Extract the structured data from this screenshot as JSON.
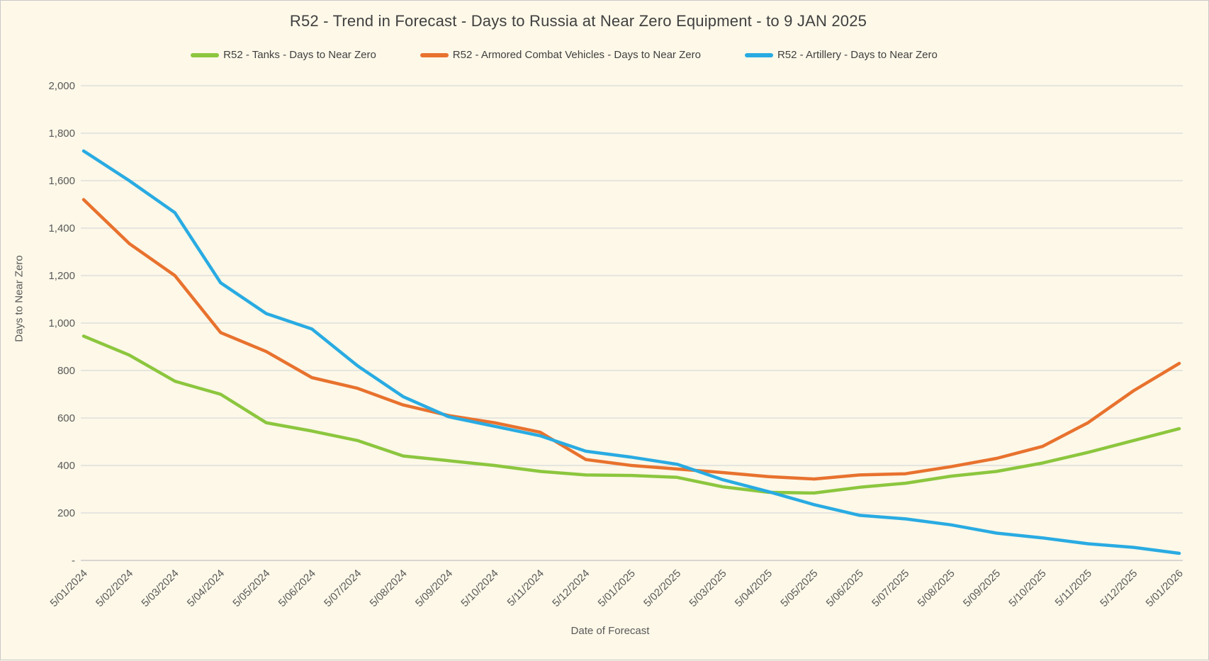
{
  "page": {
    "background_color": "#FDF8E8",
    "border_color": "#C9C9C9",
    "gridline_color": "#D9D9D9",
    "axis_line_color": "#C2C2C2",
    "axis_text_color": "#595959",
    "title_text_color": "#404040"
  },
  "chart_data": {
    "type": "line",
    "title": "R52 - Trend in Forecast - Days to Russia at Near Zero Equipment - to 9 JAN 2025",
    "xlabel": "Date of Forecast",
    "ylabel": "Days to Near Zero",
    "ylim": [
      0,
      2000
    ],
    "y_tick_interval": 200,
    "y_tick_labels": [
      "-",
      "200",
      "400",
      "600",
      "800",
      "1,000",
      "1,200",
      "1,400",
      "1,600",
      "1,800",
      "2,000"
    ],
    "grid": true,
    "legend_position": "top",
    "x_tick_rotation_deg": 45,
    "categories": [
      "5/01/2024",
      "5/02/2024",
      "5/03/2024",
      "5/04/2024",
      "5/05/2024",
      "5/06/2024",
      "5/07/2024",
      "5/08/2024",
      "5/09/2024",
      "5/10/2024",
      "5/11/2024",
      "5/12/2024",
      "5/01/2025",
      "5/02/2025",
      "5/03/2025",
      "5/04/2025",
      "5/05/2025",
      "5/06/2025",
      "5/07/2025",
      "5/08/2025",
      "5/09/2025",
      "5/10/2025",
      "5/11/2025",
      "5/12/2025",
      "5/01/2026"
    ],
    "series": [
      {
        "name": "R52 - Tanks - Days to Near Zero",
        "color": "#8CC63E",
        "values": [
          945,
          865,
          755,
          700,
          580,
          545,
          505,
          440,
          420,
          400,
          375,
          360,
          358,
          350,
          310,
          287,
          284,
          308,
          325,
          355,
          375,
          410,
          455,
          505,
          555
        ]
      },
      {
        "name": "R52 - Armored Combat Vehicles - Days to Near Zero",
        "color": "#E8722E",
        "values": [
          1520,
          1335,
          1200,
          960,
          880,
          770,
          725,
          655,
          610,
          580,
          540,
          425,
          400,
          385,
          370,
          353,
          343,
          360,
          365,
          395,
          430,
          480,
          580,
          715,
          830
        ]
      },
      {
        "name": "R52 - Artillery - Days to Near Zero",
        "color": "#29ABE2",
        "values": [
          1725,
          1600,
          1465,
          1170,
          1040,
          975,
          820,
          690,
          605,
          565,
          525,
          460,
          435,
          405,
          340,
          290,
          235,
          190,
          175,
          150,
          115,
          95,
          70,
          55,
          30
        ]
      }
    ]
  }
}
